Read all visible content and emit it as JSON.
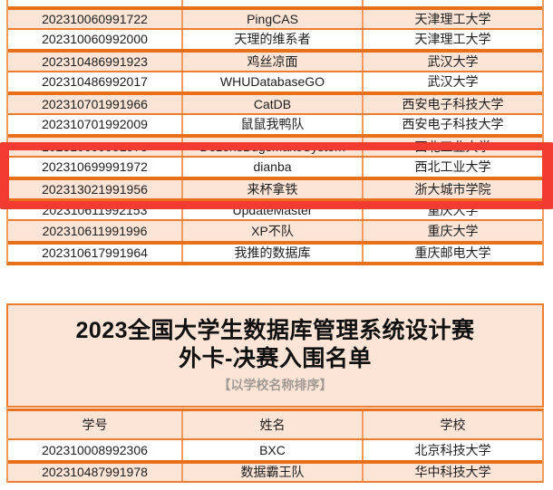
{
  "document": {
    "type": "competition-finalist-list",
    "colors": {
      "row_peach": "#fce4d6",
      "row_white": "#ffffff",
      "border_orange": "#ed7d31",
      "border_orange_dark": "#e8701a",
      "border_orange_light": "#f19b5e",
      "highlight_red": "#f23b31",
      "subtitle_gray": "#a09a95"
    }
  },
  "top_table": {
    "rows": [
      {
        "id": "202310060991722",
        "team": "PingCAS",
        "school": "天津理工大学",
        "zebra": "peach",
        "sep": "thick",
        "highlighted": false
      },
      {
        "id": "202310060992000",
        "team": "天理的维系者",
        "school": "天津理工大学",
        "zebra": "white",
        "sep": "thin",
        "highlighted": false
      },
      {
        "id": "202310486991923",
        "team": "鸡丝凉面",
        "school": "武汉大学",
        "zebra": "peach",
        "sep": "thick",
        "highlighted": false
      },
      {
        "id": "202310486992017",
        "team": "WHUDatabaseGO",
        "school": "武汉大学",
        "zebra": "white",
        "sep": "thin",
        "highlighted": false
      },
      {
        "id": "202310701991966",
        "team": "CatDB",
        "school": "西安电子科技大学",
        "zebra": "peach",
        "sep": "thick",
        "highlighted": false
      },
      {
        "id": "202310701992009",
        "team": "鼠鼠我鸭队",
        "school": "西安电子科技大学",
        "zebra": "white",
        "sep": "thin",
        "highlighted": false
      },
      {
        "id": "202310699991975",
        "team": "DozensBugsMakeSystem",
        "school": "西北工业大学",
        "zebra": "peach",
        "sep": "thick",
        "highlighted": true
      },
      {
        "id": "202310699991972",
        "team": "dianba",
        "school": "西北工业大学",
        "zebra": "white",
        "sep": "thin",
        "highlighted": true
      },
      {
        "id": "202313021991956",
        "team": "来杯拿铁",
        "school": "浙大城市学院",
        "zebra": "peach",
        "sep": "thick",
        "highlighted": false
      },
      {
        "id": "202310611992153",
        "team": "UpdateMaster",
        "school": "重庆大学",
        "zebra": "white",
        "sep": "thick",
        "highlighted": false
      },
      {
        "id": "202310611991996",
        "team": "XP不队",
        "school": "重庆大学",
        "zebra": "peach",
        "sep": "thin",
        "highlighted": false
      },
      {
        "id": "202310617991964",
        "team": "我推的数据库",
        "school": "重庆邮电大学",
        "zebra": "white",
        "sep": "thick",
        "highlighted": false
      }
    ]
  },
  "banner": {
    "title_line1": "2023全国大学生数据库管理系统设计赛",
    "title_line2": "外卡-决赛入围名单",
    "subtitle": "【以学校名称排序】"
  },
  "bottom_table": {
    "headers": [
      "学号",
      "姓名",
      "学校"
    ],
    "rows": [
      {
        "id": "202310008992306",
        "team": "BXC",
        "school": "北京科技大学",
        "zebra": "white",
        "sep": "thin",
        "highlighted": false
      },
      {
        "id": "202310487991978",
        "team": "数据霸王队",
        "school": "华中科技大学",
        "zebra": "peach",
        "sep": "thick",
        "highlighted": false
      }
    ]
  }
}
